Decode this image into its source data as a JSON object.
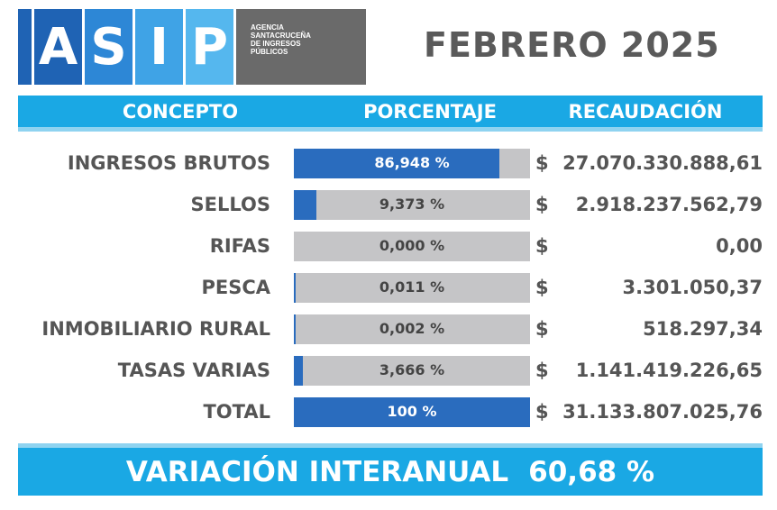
{
  "logo": {
    "letters": [
      "A",
      "S",
      "I",
      "P"
    ],
    "agency_text": "AGENCIA\nSANTACRUCEÑA\nDE INGRESOS\nPÚBLICOS",
    "colors": [
      "#1f63b4",
      "#2d87d6",
      "#3fa3e6",
      "#55b7ee"
    ]
  },
  "period": "FEBRERO 2025",
  "header": {
    "concept": "CONCEPTO",
    "percentage": "PORCENTAJE",
    "collection": "RECAUDACIÓN"
  },
  "rows": [
    {
      "concept": "INGRESOS BRUTOS",
      "percent_label": "86,948 %",
      "fraction": 0.869,
      "currency": "$",
      "amount": "27.070.330.888,61"
    },
    {
      "concept": "SELLOS",
      "percent_label": "9,373 %",
      "fraction": 0.094,
      "currency": "$",
      "amount": "2.918.237.562,79"
    },
    {
      "concept": "RIFAS",
      "percent_label": "0,000 %",
      "fraction": 0.0,
      "currency": "$",
      "amount": "0,00"
    },
    {
      "concept": "PESCA",
      "percent_label": "0,011 %",
      "fraction": 0.0001,
      "currency": "$",
      "amount": "3.301.050,37"
    },
    {
      "concept": "INMOBILIARIO RURAL",
      "percent_label": "0,002 %",
      "fraction": 2e-05,
      "currency": "$",
      "amount": "518.297,34"
    },
    {
      "concept": "TASAS VARIAS",
      "percent_label": "3,666 %",
      "fraction": 0.037,
      "currency": "$",
      "amount": "1.141.419.226,65"
    },
    {
      "concept": "TOTAL",
      "percent_label": "100 %",
      "fraction": 1.0,
      "currency": "$",
      "amount": "31.133.807.025,76"
    }
  ],
  "footer": {
    "label": "VARIACIÓN INTERANUAL",
    "value": "60,68 %"
  },
  "colors": {
    "accent_blue": "#1aa8e4",
    "bar_fill": "#2a6cbe",
    "bar_track": "#c5c5c7",
    "text_gray": "#555555"
  }
}
